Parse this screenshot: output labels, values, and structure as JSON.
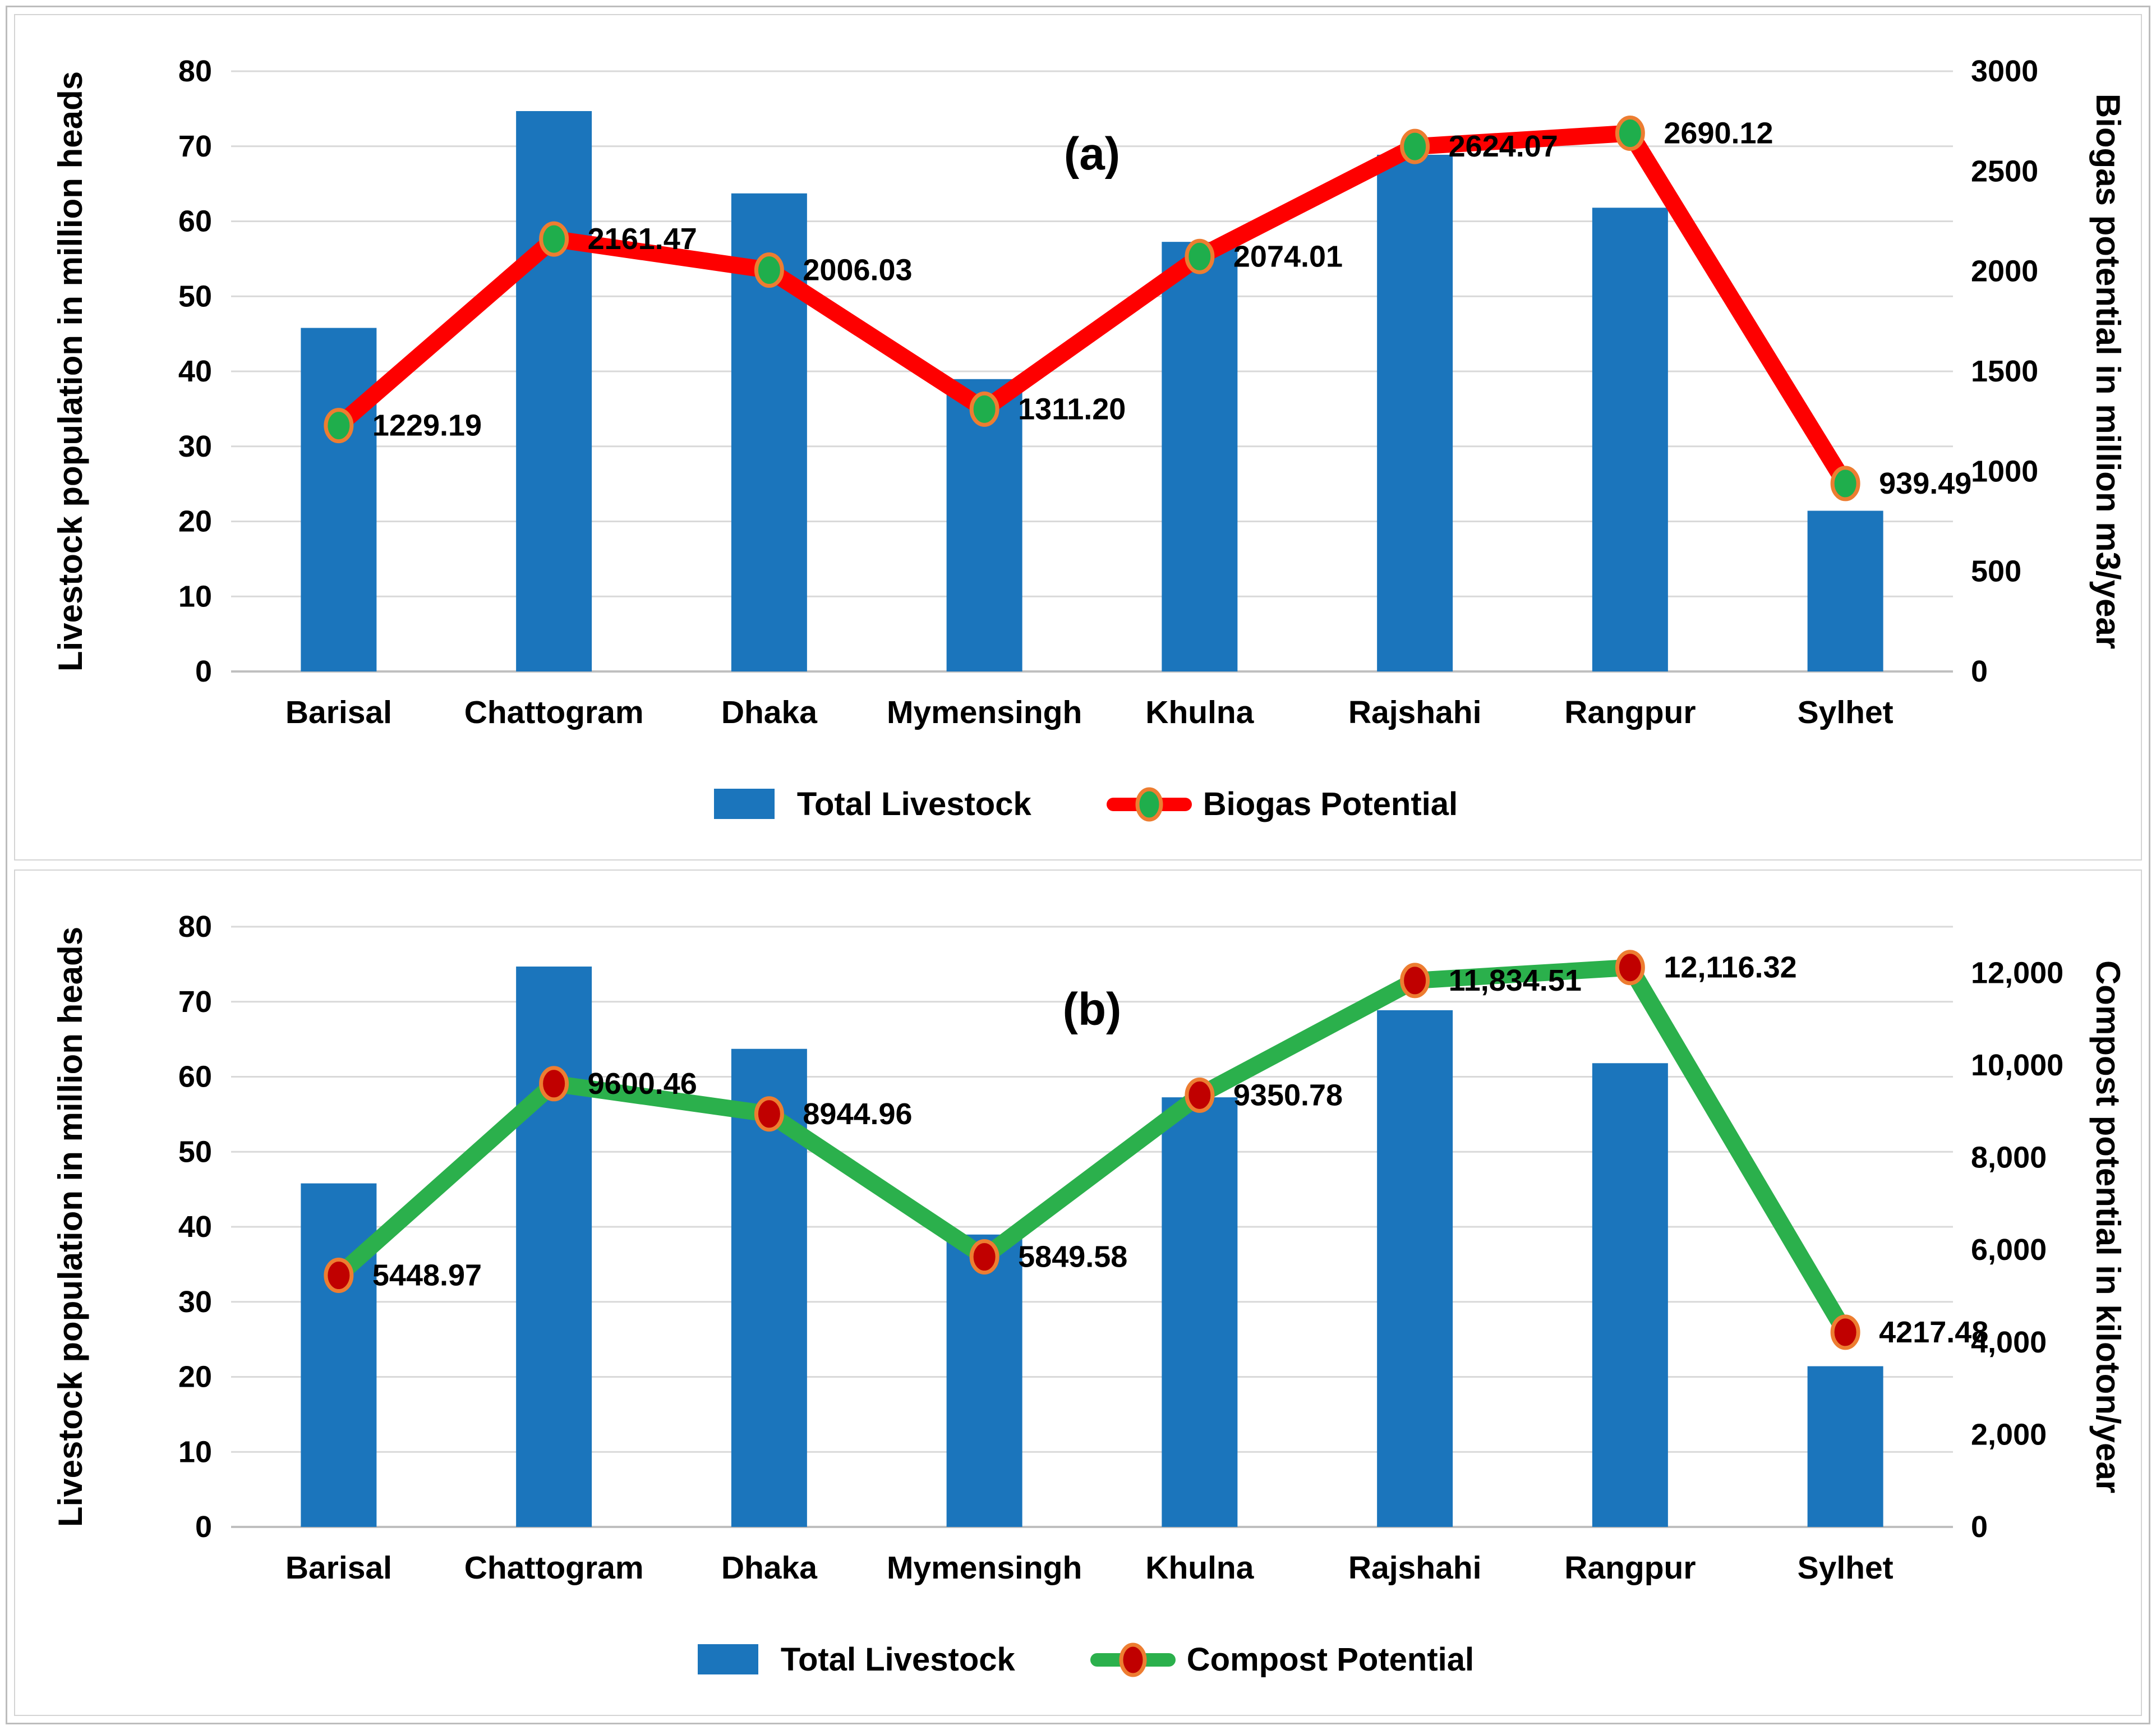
{
  "chart_data": [
    {
      "type": "bar+line",
      "panel_label": "(a)",
      "categories": [
        "Barisal",
        "Chattogram",
        "Dhaka",
        "Mymensingh",
        "Khulna",
        "Rajshahi",
        "Rangpur",
        "Sylhet"
      ],
      "axes": {
        "left": {
          "label": "Livestock population in million heads",
          "min": 0,
          "max": 80,
          "tick_values": [
            0,
            10,
            20,
            30,
            40,
            50,
            60,
            70,
            80
          ],
          "tick_labels": [
            "0",
            "10",
            "20",
            "30",
            "40",
            "50",
            "60",
            "70",
            "80"
          ]
        },
        "right": {
          "label": "Biogas potential in million m3/year",
          "min": 0,
          "max": 3000,
          "tick_values": [
            0,
            500,
            1000,
            1500,
            2000,
            2500,
            3000
          ],
          "tick_labels": [
            "0",
            "500",
            "1000",
            "1500",
            "2000",
            "2500",
            "3000"
          ]
        }
      },
      "series": [
        {
          "name": "Total Livestock",
          "type": "bar",
          "axis": "left",
          "color": "#1B75BC",
          "values": [
            45.79,
            74.69,
            63.72,
            38.97,
            57.26,
            68.87,
            61.81,
            21.42
          ]
        },
        {
          "name": "Biogas Potential",
          "type": "line",
          "axis": "right",
          "color": "#FE0000",
          "marker_fill": "#1FAE4C",
          "marker_stroke": "#ED7D31",
          "values": [
            1229.19,
            2161.47,
            2006.03,
            1311.2,
            2074.01,
            2624.07,
            2690.12,
            939.49
          ],
          "data_labels": [
            "1229.19",
            "2161.47",
            "2006.03",
            "1311.20",
            "2074.01",
            "2624.07",
            "2690.12",
            "939.49"
          ]
        }
      ],
      "legend": {
        "position": "bottom",
        "items": [
          "Total Livestock",
          "Biogas Potential"
        ]
      },
      "grid": true
    },
    {
      "type": "bar+line",
      "panel_label": "(b)",
      "categories": [
        "Barisal",
        "Chattogram",
        "Dhaka",
        "Mymensingh",
        "Khulna",
        "Rajshahi",
        "Rangpur",
        "Sylhet"
      ],
      "axes": {
        "left": {
          "label": "Livestock population in million heads",
          "min": 0,
          "max": 80,
          "tick_values": [
            0,
            10,
            20,
            30,
            40,
            50,
            60,
            70,
            80
          ],
          "tick_labels": [
            "0",
            "10",
            "20",
            "30",
            "40",
            "50",
            "60",
            "70",
            "80"
          ]
        },
        "right": {
          "label": "Compost potential in kiloton/year",
          "min": 0,
          "max": 13000,
          "tick_values": [
            0,
            2000,
            4000,
            6000,
            8000,
            10000,
            12000
          ],
          "tick_labels": [
            "0",
            "2,000",
            "4,000",
            "6,000",
            "8,000",
            "10,000",
            "12,000"
          ]
        }
      },
      "series": [
        {
          "name": "Total Livestock",
          "type": "bar",
          "axis": "left",
          "color": "#1B75BC",
          "values": [
            45.79,
            74.69,
            63.72,
            38.97,
            57.26,
            68.87,
            61.81,
            21.42
          ]
        },
        {
          "name": "Compost Potential",
          "type": "line",
          "axis": "right",
          "color": "#2BB04C",
          "marker_fill": "#C00000",
          "marker_stroke": "#ED7D31",
          "values": [
            5448.97,
            9600.46,
            8944.96,
            5849.58,
            9350.78,
            11834.51,
            12116.32,
            4217.48
          ],
          "data_labels": [
            "5448.97",
            "9600.46",
            "8944.96",
            "5849.58",
            "9350.78",
            "11,834.51",
            "12,116.32",
            "4217.48"
          ]
        }
      ],
      "legend": {
        "position": "bottom",
        "items": [
          "Total Livestock",
          "Compost Potential"
        ]
      },
      "grid": true
    }
  ]
}
